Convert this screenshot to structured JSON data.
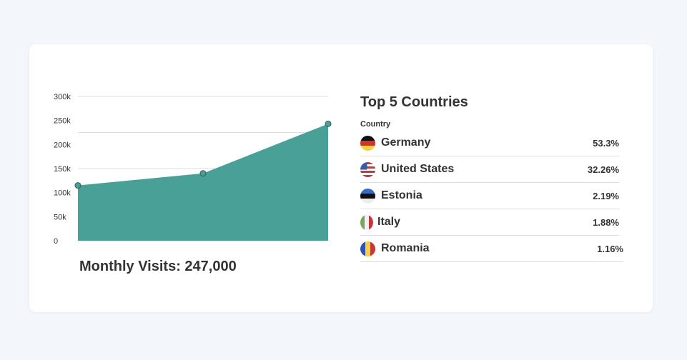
{
  "chart_data": {
    "type": "area",
    "x": [
      1,
      2,
      3
    ],
    "values": [
      115000,
      140000,
      243000
    ],
    "yticks": [
      "0",
      "50k",
      "100k",
      "150k",
      "200k",
      "250k",
      "300k"
    ],
    "ylim": [
      0,
      300000
    ],
    "grid": true,
    "color": "#48a096"
  },
  "summary": {
    "monthly_visits": "Monthly Visits: 247,000"
  },
  "countries": {
    "title": "Top 5 Countries",
    "column_header": "Country",
    "rows": [
      {
        "name": "Germany",
        "percent": "53.3%",
        "flag": "de"
      },
      {
        "name": "United States",
        "percent": "32.26%",
        "flag": "us"
      },
      {
        "name": "Estonia",
        "percent": "2.19%",
        "flag": "ee"
      },
      {
        "name": "Italy",
        "percent": "1.88%",
        "flag": "it"
      },
      {
        "name": "Romania",
        "percent": "1.16%",
        "flag": "ro"
      }
    ]
  }
}
